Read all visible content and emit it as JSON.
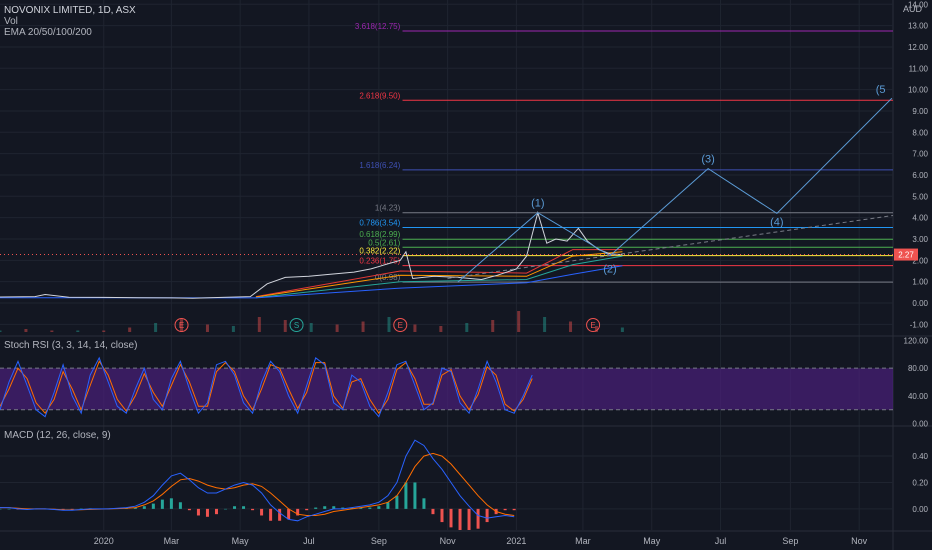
{
  "header": {
    "symbol": "NOVONIX LIMITED, 1D, ASX",
    "vol": "Vol",
    "ema": "EMA 20/50/100/200",
    "currency": "AUD"
  },
  "colors": {
    "background": "#131722",
    "grid": "#1f2430",
    "text": "#b2b5be",
    "price": "#d1d4dc",
    "ema20": "#e53935",
    "ema50": "#ff9800",
    "ema100": "#26a69a",
    "ema200": "#2962ff",
    "wave": "#5b9bd5",
    "rsi_k": "#2962ff",
    "rsi_d": "#ff6d00",
    "rsi_band": "#4a1f7a",
    "macd": "#2962ff",
    "signal": "#ff6d00",
    "hist_up": "#26a69a",
    "hist_down": "#ef5350",
    "price_tag": "#ef5350"
  },
  "chart_data": [
    {
      "type": "line",
      "title": "NOVONIX LIMITED, 1D, ASX",
      "ylabel": "AUD",
      "ylim": [
        -1.5,
        14.2
      ],
      "yticks": [
        -1.0,
        0.0,
        1.0,
        2.0,
        3.0,
        4.0,
        5.0,
        6.0,
        7.0,
        8.0,
        9.0,
        10.0,
        11.0,
        12.0,
        13.0,
        14.0
      ],
      "ytick_labels": [
        "-1.00",
        "0.00",
        "1.00",
        "2.00",
        "3.00",
        "4.00",
        "5.00",
        "6.00",
        "7.00",
        "8.00",
        "9.00",
        "10.00",
        "11.00",
        "12.00",
        "13.00",
        "14.00"
      ],
      "last_price": 2.27,
      "last_price_label": "2.27",
      "x_labels": [
        "2020",
        "Mar",
        "May",
        "Jul",
        "Sep",
        "Nov",
        "2021",
        "Mar",
        "May",
        "Jul",
        "Sep",
        "Nov"
      ],
      "x_label_dates": [
        "2020-01-01",
        "2020-03-01",
        "2020-05-01",
        "2020-07-01",
        "2020-09-01",
        "2020-11-01",
        "2021-01-01",
        "2021-03-01",
        "2021-05-01",
        "2021-07-01",
        "2021-09-01",
        "2021-11-01"
      ],
      "xlim": [
        "2019-10-01",
        "2021-12-01"
      ],
      "series": [
        {
          "dates": [
            "2019-10-01",
            "2019-11-01",
            "2019-11-10",
            "2019-12-01",
            "2020-01-01",
            "2020-02-01",
            "2020-03-01",
            "2020-03-20",
            "2020-04-15",
            "2020-05-10",
            "2020-05-25",
            "2020-06-10",
            "2020-07-01",
            "2020-07-20",
            "2020-08-10",
            "2020-08-25",
            "2020-09-10",
            "2020-09-20",
            "2020-09-25",
            "2020-10-01",
            "2020-10-20",
            "2020-11-10",
            "2020-12-01",
            "2020-12-15",
            "2021-01-01",
            "2021-01-10",
            "2021-01-20",
            "2021-01-28",
            "2021-02-05",
            "2021-02-15",
            "2021-02-25",
            "2021-03-05",
            "2021-03-15",
            "2021-03-25",
            "2021-04-05"
          ],
          "values": [
            0.28,
            0.3,
            0.4,
            0.27,
            0.26,
            0.25,
            0.24,
            0.22,
            0.26,
            0.3,
            0.9,
            1.2,
            1.25,
            1.35,
            1.45,
            1.6,
            1.85,
            2.0,
            2.4,
            1.15,
            1.25,
            1.2,
            1.1,
            1.3,
            1.6,
            2.2,
            4.23,
            2.8,
            3.0,
            2.9,
            3.5,
            2.9,
            2.5,
            2.3,
            2.27
          ]
        },
        {
          "dates": [
            "2020-05-15",
            "2020-09-20",
            "2021-01-10",
            "2021-02-20",
            "2021-04-05"
          ],
          "values": [
            0.3,
            1.5,
            1.4,
            2.5,
            2.5
          ]
        },
        {
          "dates": [
            "2020-05-15",
            "2020-09-20",
            "2021-01-10",
            "2021-02-20",
            "2021-04-05"
          ],
          "values": [
            0.28,
            1.3,
            1.25,
            2.2,
            2.4
          ]
        },
        {
          "dates": [
            "2020-05-15",
            "2020-09-20",
            "2021-01-10",
            "2021-02-20",
            "2021-04-05"
          ],
          "values": [
            0.25,
            1.0,
            1.1,
            1.8,
            2.2
          ]
        },
        {
          "dates": [
            "2019-10-01",
            "2020-05-15",
            "2020-09-20",
            "2021-01-10",
            "2021-02-20",
            "2021-04-05"
          ],
          "values": [
            0.25,
            0.24,
            0.7,
            0.95,
            1.35,
            1.75
          ]
        }
      ],
      "fib_levels": [
        {
          "label": "3.618(12.75)",
          "value": 12.75,
          "color": "#9c27b0"
        },
        {
          "label": "2.618(9.50)",
          "value": 9.5,
          "color": "#f23645"
        },
        {
          "label": "1.618(6.24)",
          "value": 6.24,
          "color": "#3f51b5"
        },
        {
          "label": "1(4.23)",
          "value": 4.23,
          "color": "#787b86"
        },
        {
          "label": "0.786(3.54)",
          "value": 3.54,
          "color": "#2196f3"
        },
        {
          "label": "0.618(2.99)",
          "value": 2.99,
          "color": "#4caf50"
        },
        {
          "label": "0.5(2.61)",
          "value": 2.61,
          "color": "#4caf50"
        },
        {
          "label": "0.382(2.22)",
          "value": 2.22,
          "color": "#ffeb3b"
        },
        {
          "label": "0.236(1.75)",
          "value": 1.75,
          "color": "#f23645"
        },
        {
          "label": "0(0.98)",
          "value": 0.98,
          "color": "#787b86"
        }
      ],
      "wave_labels": [
        {
          "label": "(1)",
          "date": "2021-01-20",
          "value": 4.23
        },
        {
          "label": "(2)",
          "date": "2021-03-25",
          "value": 2.0
        },
        {
          "label": "(3)",
          "date": "2021-06-20",
          "value": 6.3
        },
        {
          "label": "(4)",
          "date": "2021-08-20",
          "value": 4.2
        },
        {
          "label": "(5",
          "date": "2021-11-20",
          "value": 9.55
        }
      ],
      "wave_path": {
        "dates": [
          "2020-11-10",
          "2021-01-20",
          "2021-03-25",
          "2021-06-20",
          "2021-08-20",
          "2021-11-30"
        ],
        "values": [
          0.98,
          4.23,
          2.22,
          6.3,
          4.2,
          9.6
        ]
      },
      "trendline": {
        "dates": [
          "2020-11-01",
          "2021-12-01"
        ],
        "values": [
          1.15,
          4.1
        ]
      },
      "volume_values": [
        0.1,
        0.2,
        0.1,
        0.1,
        0.1,
        0.3,
        0.6,
        0.9,
        0.5,
        0.4,
        1.0,
        0.8,
        0.6,
        0.5,
        0.7,
        1.0,
        0.5,
        0.4,
        0.6,
        0.8,
        1.4,
        1.0,
        0.7,
        0.4,
        0.3
      ],
      "events": [
        {
          "label": "E",
          "date": "2020-03-10",
          "color": "#ef5350"
        },
        {
          "label": "S",
          "date": "2020-06-20",
          "color": "#26a69a"
        },
        {
          "label": "E",
          "date": "2020-09-20",
          "color": "#ef5350"
        },
        {
          "label": "E",
          "date": "2021-03-10",
          "color": "#ef5350"
        }
      ]
    },
    {
      "type": "line",
      "title": "Stoch RSI (3, 3, 14, 14, close)",
      "ylim": [
        -2,
        125
      ],
      "yticks": [
        0,
        40,
        80,
        120
      ],
      "ytick_labels": [
        "0.00",
        "40.00",
        "80.00",
        "120.00"
      ],
      "band": [
        20,
        80
      ],
      "x_step_days": 8,
      "x_start": "2019-10-01",
      "series": [
        {
          "name": "K",
          "values": [
            20,
            60,
            90,
            55,
            20,
            10,
            45,
            85,
            40,
            15,
            70,
            95,
            60,
            25,
            15,
            50,
            80,
            35,
            20,
            65,
            90,
            50,
            15,
            30,
            85,
            90,
            70,
            30,
            15,
            60,
            90,
            75,
            40,
            15,
            55,
            95,
            85,
            30,
            20,
            70,
            60,
            25,
            10,
            45,
            85,
            90,
            55,
            20,
            30,
            80,
            75,
            30,
            15,
            50,
            90,
            60,
            20,
            15,
            40,
            70
          ]
        },
        {
          "name": "D",
          "values": [
            25,
            50,
            80,
            65,
            30,
            15,
            35,
            75,
            50,
            20,
            55,
            90,
            70,
            35,
            18,
            40,
            72,
            45,
            25,
            55,
            85,
            60,
            25,
            25,
            75,
            88,
            75,
            40,
            20,
            50,
            85,
            80,
            50,
            22,
            45,
            88,
            88,
            40,
            22,
            60,
            65,
            35,
            15,
            35,
            78,
            88,
            65,
            28,
            28,
            70,
            78,
            40,
            20,
            42,
            82,
            70,
            28,
            18,
            35,
            65
          ]
        }
      ]
    },
    {
      "type": "line",
      "title": "MACD (12, 26, close, 9)",
      "ylim": [
        -0.16,
        0.62
      ],
      "yticks": [
        0.0,
        0.2,
        0.4
      ],
      "ytick_labels": [
        "0.00",
        "0.20",
        "0.40"
      ],
      "x_step_days": 8,
      "x_start": "2019-10-01",
      "series": [
        {
          "name": "MACD",
          "values": [
            0.01,
            0.01,
            0.0,
            -0.005,
            0.0,
            0.0,
            -0.005,
            -0.01,
            -0.01,
            -0.005,
            0.0,
            0.0,
            0.0,
            0.005,
            0.01,
            0.02,
            0.05,
            0.1,
            0.18,
            0.25,
            0.27,
            0.22,
            0.16,
            0.12,
            0.12,
            0.15,
            0.18,
            0.2,
            0.18,
            0.12,
            0.03,
            -0.03,
            -0.08,
            -0.09,
            -0.06,
            -0.04,
            -0.02,
            0.0,
            0.0,
            0.01,
            0.02,
            0.03,
            0.05,
            0.1,
            0.2,
            0.4,
            0.52,
            0.48,
            0.38,
            0.3,
            0.2,
            0.1,
            0.02,
            -0.05,
            -0.07,
            -0.06,
            -0.05,
            -0.06
          ]
        },
        {
          "name": "Signal",
          "values": [
            0.01,
            0.01,
            0.005,
            0.0,
            0.0,
            0.0,
            -0.003,
            -0.006,
            -0.008,
            -0.007,
            -0.004,
            -0.002,
            0.0,
            0.002,
            0.005,
            0.01,
            0.03,
            0.06,
            0.11,
            0.17,
            0.22,
            0.23,
            0.21,
            0.18,
            0.16,
            0.15,
            0.16,
            0.18,
            0.19,
            0.17,
            0.12,
            0.06,
            0.0,
            -0.04,
            -0.05,
            -0.05,
            -0.04,
            -0.02,
            -0.01,
            0.0,
            0.01,
            0.02,
            0.03,
            0.05,
            0.1,
            0.2,
            0.32,
            0.4,
            0.42,
            0.4,
            0.34,
            0.26,
            0.18,
            0.1,
            0.03,
            -0.02,
            -0.04,
            -0.05
          ]
        }
      ]
    }
  ]
}
